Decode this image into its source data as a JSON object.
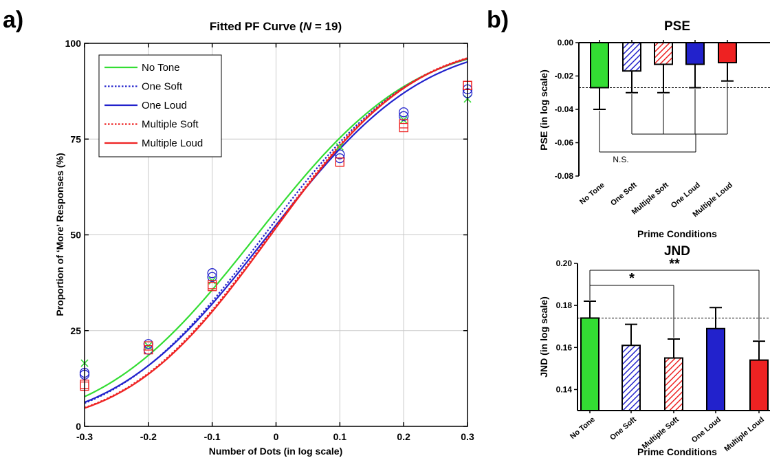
{
  "panel_a_letter": "a)",
  "panel_b_letter": "b)",
  "chart_data": [
    {
      "type": "line",
      "title_main": "Fitted PF Curve (",
      "title_var": "N",
      "title_rest": " = 19)",
      "xlabel": "Number of Dots (in log scale)",
      "ylabel": "Proportion of ‘More’ Responses (%)",
      "xlim": [
        -0.3,
        0.3
      ],
      "ylim": [
        0,
        100
      ],
      "xticks": [
        -0.3,
        -0.2,
        -0.1,
        0,
        0.1,
        0.2,
        0.3
      ],
      "xtick_labels": [
        "-0.3",
        "-0.2",
        "-0.1",
        "0",
        "0.1",
        "0.2",
        "0.3"
      ],
      "yticks": [
        0,
        25,
        50,
        75,
        100
      ],
      "ytick_labels": [
        "0",
        "25",
        "50",
        "75",
        "100"
      ],
      "grid": true,
      "legend_position": "top-left",
      "series": [
        {
          "name": "No Tone",
          "color": "#33dd33",
          "dash": "solid",
          "marker": "x",
          "mu": -0.03,
          "sigma": 0.19,
          "points": [
            [
              -0.3,
              16.5
            ],
            [
              -0.2,
              21
            ],
            [
              -0.1,
              38
            ],
            [
              0.1,
              73
            ],
            [
              0.2,
              80
            ],
            [
              0.3,
              85.5
            ]
          ]
        },
        {
          "name": "One Soft",
          "color": "#2222cc",
          "dash": "dotted",
          "marker": "circle",
          "mu": -0.018,
          "sigma": 0.182,
          "points": [
            [
              -0.3,
              13.5
            ],
            [
              -0.2,
              21.5
            ],
            [
              -0.1,
              39
            ],
            [
              0.1,
              70
            ],
            [
              0.2,
              81
            ],
            [
              0.3,
              88
            ]
          ]
        },
        {
          "name": "One Loud",
          "color": "#2222cc",
          "dash": "solid",
          "marker": "circle",
          "mu": -0.012,
          "sigma": 0.188,
          "points": [
            [
              -0.3,
              14
            ],
            [
              -0.2,
              20
            ],
            [
              -0.1,
              40
            ],
            [
              0.1,
              71
            ],
            [
              0.2,
              82
            ],
            [
              0.3,
              87
            ]
          ]
        },
        {
          "name": "Multiple Soft",
          "color": "#ee2222",
          "dash": "dotted",
          "marker": "square",
          "mu": -0.01,
          "sigma": 0.175,
          "points": [
            [
              -0.3,
              11
            ],
            [
              -0.2,
              21
            ],
            [
              -0.1,
              37
            ],
            [
              0.1,
              69
            ],
            [
              0.2,
              79
            ],
            [
              0.3,
              89
            ]
          ]
        },
        {
          "name": "Multiple Loud",
          "color": "#ee2222",
          "dash": "solid",
          "marker": "square",
          "mu": -0.008,
          "sigma": 0.175,
          "points": [
            [
              -0.3,
              10.5
            ],
            [
              -0.2,
              20
            ],
            [
              -0.1,
              36.5
            ],
            [
              0.1,
              69
            ],
            [
              0.2,
              78
            ],
            [
              0.3,
              89
            ]
          ]
        }
      ]
    },
    {
      "type": "bar",
      "title": "PSE",
      "xlabel": "Prime Conditions",
      "ylabel": "PSE (in log scale)",
      "ylim": [
        -0.08,
        0
      ],
      "yticks": [
        0,
        -0.02,
        -0.04,
        -0.06,
        -0.08
      ],
      "ytick_labels": [
        "0.00",
        "-0.02",
        "-0.04",
        "-0.06",
        "-0.08"
      ],
      "categories": [
        "No Tone",
        "One Soft",
        "Multiple Soft",
        "One Loud",
        "Multiple Loud"
      ],
      "values": [
        -0.027,
        -0.017,
        -0.013,
        -0.013,
        -0.012
      ],
      "errors": [
        0.013,
        0.013,
        0.017,
        0.014,
        0.011
      ],
      "colors": [
        "#33dd33",
        "#2222cc",
        "#ee2222",
        "#2222cc",
        "#ee2222"
      ],
      "hatched": [
        false,
        true,
        true,
        false,
        false
      ],
      "reference_line": -0.027,
      "annotation": "N.S."
    },
    {
      "type": "bar",
      "title": "JND",
      "xlabel": "Prime Conditions",
      "ylabel": "JND (in log scale)",
      "ylim": [
        0.13,
        0.2
      ],
      "yticks": [
        0.14,
        0.16,
        0.18,
        0.2
      ],
      "ytick_labels": [
        "0.14",
        "0.16",
        "0.18",
        "0.20"
      ],
      "categories": [
        "No Tone",
        "One Soft",
        "Multiple Soft",
        "One Loud",
        "Multiple Loud"
      ],
      "values": [
        0.174,
        0.161,
        0.155,
        0.169,
        0.154
      ],
      "errors": [
        0.008,
        0.01,
        0.009,
        0.01,
        0.009
      ],
      "colors": [
        "#33dd33",
        "#2222cc",
        "#ee2222",
        "#2222cc",
        "#ee2222"
      ],
      "hatched": [
        false,
        true,
        true,
        false,
        false
      ],
      "reference_line": 0.174,
      "significance": [
        {
          "from": "No Tone",
          "to": "Multiple Soft",
          "label": "*"
        },
        {
          "from": "No Tone",
          "to": "Multiple Loud",
          "label": "**"
        }
      ]
    }
  ]
}
